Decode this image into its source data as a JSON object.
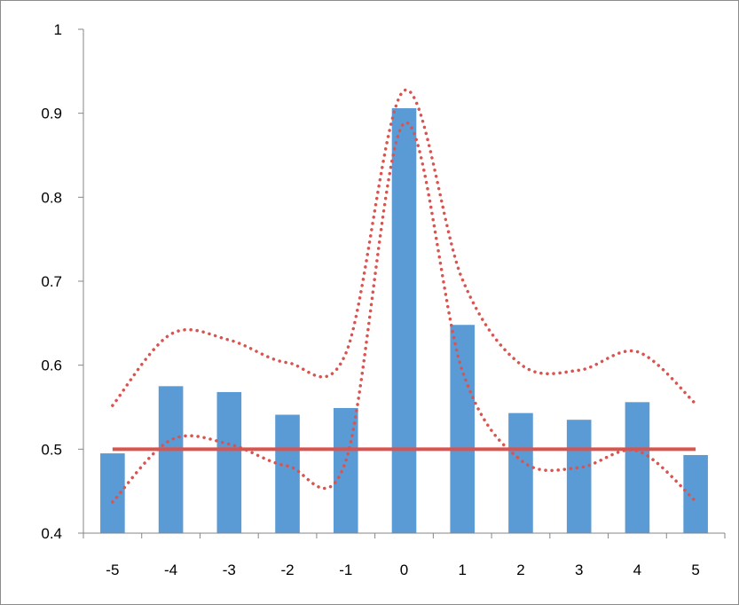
{
  "chart_data": {
    "type": "bar",
    "categories": [
      "-5",
      "-4",
      "-3",
      "-2",
      "-1",
      "0",
      "1",
      "2",
      "3",
      "4",
      "5"
    ],
    "ylim": [
      0.4,
      1.0
    ],
    "yticks": [
      "0.4",
      "0.5",
      "0.6",
      "0.7",
      "0.8",
      "0.9",
      "1"
    ],
    "title": "",
    "xlabel": "",
    "ylabel": "",
    "legend": "none",
    "grid": false,
    "series": [
      {
        "kind": "bar",
        "color": "#5b9bd5",
        "values": [
          0.495,
          0.575,
          0.568,
          0.541,
          0.549,
          0.906,
          0.648,
          0.543,
          0.535,
          0.556,
          0.493
        ]
      },
      {
        "kind": "line",
        "style": "solid",
        "color": "#d9534f",
        "values": [
          0.5,
          0.5,
          0.5,
          0.5,
          0.5,
          0.5,
          0.5,
          0.5,
          0.5,
          0.5,
          0.5
        ]
      },
      {
        "kind": "line",
        "style": "dotted",
        "color": "#d9534f",
        "values": [
          0.552,
          0.637,
          0.63,
          0.603,
          0.614,
          0.927,
          0.702,
          0.601,
          0.594,
          0.616,
          0.554
        ]
      },
      {
        "kind": "line",
        "style": "dotted",
        "color": "#d9534f",
        "values": [
          0.437,
          0.511,
          0.506,
          0.48,
          0.486,
          0.888,
          0.593,
          0.487,
          0.478,
          0.498,
          0.438
        ]
      }
    ]
  }
}
